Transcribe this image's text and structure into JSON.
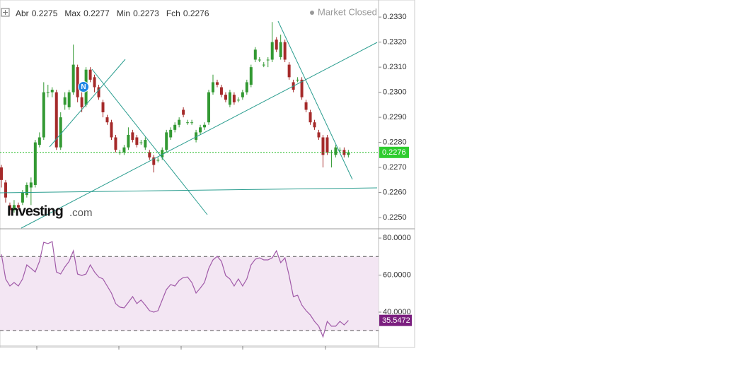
{
  "chart_data": {
    "type": "candlestick",
    "summary": [
      {
        "label": "Abr",
        "value": 0.2275
      },
      {
        "label": "Max",
        "value": 0.2277
      },
      {
        "label": "Min",
        "value": 0.2273
      },
      {
        "label": "Fch",
        "value": 0.2276
      }
    ],
    "status": "Market Closed",
    "brand": {
      "name": "Investing",
      "suffix": ".com"
    },
    "event_marker": "N",
    "up_color": "#339933",
    "down_color": "#a52a2a",
    "open": [
      0.227,
      0.2264,
      0.2255,
      0.2253,
      0.2255,
      0.2256,
      0.2259,
      0.2262,
      0.2263,
      0.2279,
      0.2282,
      0.23,
      0.23,
      0.23,
      0.2278,
      0.2295,
      0.2294,
      0.23,
      0.231,
      0.2298,
      0.2295,
      0.2309,
      0.2306,
      0.2302,
      0.2296,
      0.229,
      0.2288,
      0.2282,
      0.2276,
      0.2276,
      0.2278,
      0.2284,
      0.2282,
      0.228,
      0.2278,
      0.2276,
      0.2274,
      0.2273,
      0.2274,
      0.2277,
      0.2282,
      0.2285,
      0.2287,
      0.2293,
      0.2288,
      0.2288,
      0.2281,
      0.2284,
      0.2286,
      0.2288,
      0.23,
      0.2304,
      0.2302,
      0.2299,
      0.2295,
      0.2299,
      0.2297,
      0.2298,
      0.23,
      0.2303,
      0.2313,
      0.2313,
      0.2311,
      0.2313,
      0.2313,
      0.2321,
      0.2314,
      0.232,
      0.2311,
      0.2304,
      0.2305,
      0.2305,
      0.2296,
      0.2292,
      0.2288,
      0.2284,
      0.2282,
      0.2282,
      0.2276,
      0.2275,
      0.2277,
      0.2277,
      0.2275
    ],
    "high": [
      0.2271,
      0.2265,
      0.2256,
      0.2257,
      0.2256,
      0.2261,
      0.2264,
      0.2266,
      0.2281,
      0.2284,
      0.2304,
      0.2303,
      0.2302,
      0.2301,
      0.2292,
      0.23,
      0.2301,
      0.2319,
      0.2311,
      0.23,
      0.231,
      0.231,
      0.2307,
      0.2303,
      0.2297,
      0.2291,
      0.2289,
      0.2283,
      0.2277,
      0.2279,
      0.2286,
      0.2285,
      0.2283,
      0.2281,
      0.2282,
      0.2277,
      0.2275,
      0.2274,
      0.2278,
      0.2285,
      0.2286,
      0.2288,
      0.229,
      0.2294,
      0.2289,
      0.2289,
      0.2285,
      0.2287,
      0.2288,
      0.2301,
      0.2307,
      0.2305,
      0.2303,
      0.23,
      0.2301,
      0.23,
      0.2298,
      0.2301,
      0.2305,
      0.2311,
      0.2318,
      0.2314,
      0.2312,
      0.2314,
      0.2328,
      0.2322,
      0.2323,
      0.2321,
      0.2312,
      0.2305,
      0.2306,
      0.2306,
      0.2297,
      0.2293,
      0.2289,
      0.2285,
      0.2283,
      0.2283,
      0.2277,
      0.2279,
      0.2278,
      0.2278,
      0.2277
    ],
    "low": [
      0.2262,
      0.2256,
      0.2251,
      0.2252,
      0.2253,
      0.2255,
      0.2258,
      0.2255,
      0.2262,
      0.2278,
      0.2281,
      0.2298,
      0.2298,
      0.2277,
      0.2277,
      0.2293,
      0.2293,
      0.2299,
      0.2296,
      0.2292,
      0.2294,
      0.2304,
      0.23,
      0.2297,
      0.229,
      0.2287,
      0.2281,
      0.2276,
      0.2275,
      0.2275,
      0.2277,
      0.228,
      0.2278,
      0.2279,
      0.2277,
      0.2273,
      0.2268,
      0.2272,
      0.2273,
      0.2276,
      0.2281,
      0.2284,
      0.2286,
      0.229,
      0.2287,
      0.2287,
      0.228,
      0.2283,
      0.2285,
      0.2287,
      0.2299,
      0.2302,
      0.2298,
      0.2296,
      0.2294,
      0.2295,
      0.2296,
      0.2297,
      0.2299,
      0.2302,
      0.2312,
      0.2312,
      0.231,
      0.231,
      0.2312,
      0.2316,
      0.2313,
      0.2312,
      0.2305,
      0.23,
      0.2304,
      0.2297,
      0.2292,
      0.2287,
      0.2285,
      0.2281,
      0.227,
      0.2275,
      0.227,
      0.2274,
      0.2276,
      0.2274,
      0.2274
    ],
    "close": [
      0.2265,
      0.2258,
      0.2253,
      0.2255,
      0.2254,
      0.226,
      0.2263,
      0.2264,
      0.228,
      0.2282,
      0.23,
      0.23,
      0.2301,
      0.2278,
      0.229,
      0.2298,
      0.23,
      0.2311,
      0.2298,
      0.2294,
      0.2309,
      0.2305,
      0.2302,
      0.2298,
      0.2292,
      0.2288,
      0.2282,
      0.2277,
      0.2276,
      0.2278,
      0.2283,
      0.2281,
      0.2279,
      0.228,
      0.2281,
      0.2274,
      0.2271,
      0.2273,
      0.2277,
      0.2284,
      0.2285,
      0.2287,
      0.2289,
      0.2291,
      0.2288,
      0.2288,
      0.2284,
      0.2286,
      0.2287,
      0.23,
      0.2304,
      0.2303,
      0.2299,
      0.2297,
      0.23,
      0.2296,
      0.2297,
      0.23,
      0.2304,
      0.231,
      0.2317,
      0.2313,
      0.2311,
      0.2313,
      0.232,
      0.2317,
      0.232,
      0.2313,
      0.2306,
      0.2301,
      0.2305,
      0.2298,
      0.2293,
      0.2288,
      0.2286,
      0.2282,
      0.2275,
      0.2276,
      0.2276,
      0.2278,
      0.2277,
      0.2275,
      0.2276
    ],
    "ylim": [
      0.22458,
      0.23368
    ],
    "yticks": [
      {
        "value": 0.225,
        "label": "0.2250"
      },
      {
        "value": 0.226,
        "label": "0.2260"
      },
      {
        "value": 0.227,
        "label": "0.2270"
      },
      {
        "value": 0.228,
        "label": "0.2280"
      },
      {
        "value": 0.229,
        "label": "0.2290"
      },
      {
        "value": 0.23,
        "label": "0.2300"
      },
      {
        "value": 0.231,
        "label": "0.2310"
      },
      {
        "value": 0.232,
        "label": "0.2320"
      },
      {
        "value": 0.233,
        "label": "0.2330"
      }
    ],
    "current_price": 0.2276,
    "rsi": {
      "color": "#a05aa8",
      "values": [
        71.2,
        57.9,
        54.1,
        56.0,
        54.1,
        57.9,
        65.5,
        63.6,
        61.7,
        67.4,
        77.7,
        77.0,
        78.1,
        61.7,
        60.6,
        64.4,
        67.4,
        73.1,
        60.6,
        59.8,
        60.6,
        65.5,
        61.7,
        59.0,
        57.9,
        54.1,
        50.3,
        44.6,
        42.7,
        42.3,
        45.3,
        48.4,
        44.6,
        46.5,
        43.8,
        40.8,
        40.0,
        40.8,
        46.5,
        52.2,
        54.9,
        54.1,
        57.1,
        58.7,
        59.0,
        56.0,
        50.3,
        53.0,
        56.0,
        63.6,
        68.2,
        70.1,
        67.4,
        59.8,
        57.9,
        54.1,
        57.9,
        54.1,
        57.9,
        65.5,
        68.6,
        69.3,
        68.2,
        68.2,
        69.3,
        73.1,
        66.7,
        69.3,
        59.8,
        48.4,
        49.1,
        43.8,
        40.8,
        38.5,
        35.0,
        32.4,
        26.7,
        35.0,
        32.4,
        32.4,
        35.0,
        33.1,
        35.5472
      ],
      "ylim": [
        21.7,
        84.6
      ],
      "yticks": [
        {
          "value": 40,
          "label": "40.0000"
        },
        {
          "value": 60,
          "label": "60.0000"
        },
        {
          "value": 80,
          "label": "80.0000"
        }
      ],
      "upper_band": 70,
      "lower_band": 30,
      "current": 35.5472
    }
  }
}
